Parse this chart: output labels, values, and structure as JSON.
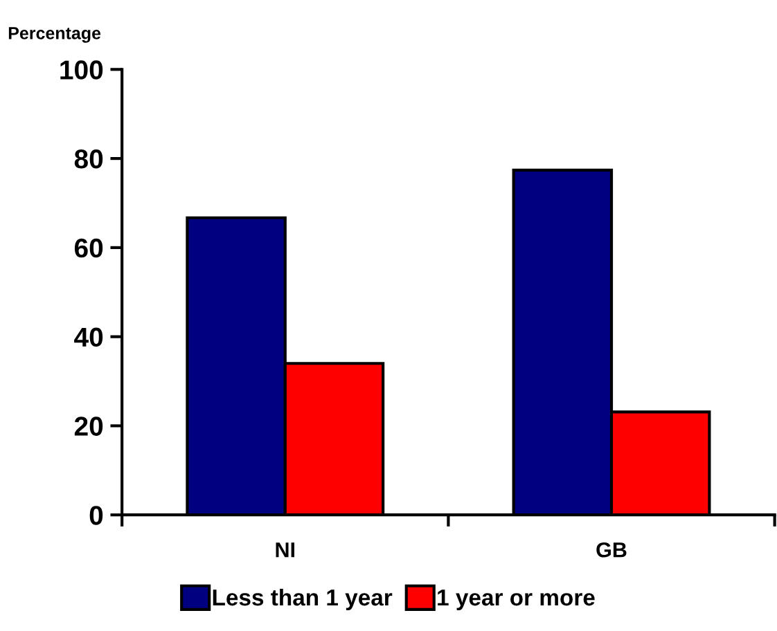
{
  "chart_data": {
    "type": "bar",
    "ylabel": "Percentage",
    "categories": [
      "NI",
      "GB"
    ],
    "series": [
      {
        "name": "Less than 1 year",
        "color": "#000080",
        "values": [
          66.7,
          77.4
        ]
      },
      {
        "name": "1 year or more",
        "color": "#ff0000",
        "values": [
          34,
          23.1
        ]
      }
    ],
    "ylim": [
      0,
      100
    ],
    "yticks": [
      0,
      20,
      40,
      60,
      80,
      100
    ],
    "grid": false,
    "legend": "bottom"
  }
}
